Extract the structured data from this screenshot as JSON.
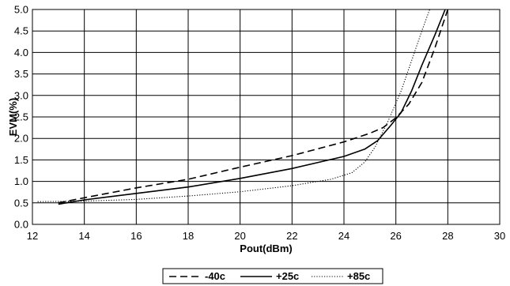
{
  "chart_data": {
    "type": "line",
    "title": "",
    "xlabel": "Pout(dBm)",
    "ylabel": "EVM(%)",
    "xlim": [
      12,
      30
    ],
    "ylim": [
      0,
      5
    ],
    "xticks": [
      "12",
      "14",
      "16",
      "18",
      "20",
      "22",
      "24",
      "26",
      "28",
      "30"
    ],
    "yticks": [
      "0.0",
      "0.5",
      "1.0",
      "1.5",
      "2.0",
      "2.5",
      "3.0",
      "3.5",
      "4.0",
      "4.5",
      "5.0"
    ],
    "grid": true,
    "legend": "bottom",
    "series": [
      {
        "name": "-40c",
        "style": "dashed",
        "points": [
          [
            13,
            0.5
          ],
          [
            14,
            0.62
          ],
          [
            16,
            0.85
          ],
          [
            18,
            1.05
          ],
          [
            20,
            1.33
          ],
          [
            22,
            1.6
          ],
          [
            24,
            1.92
          ],
          [
            25,
            2.12
          ],
          [
            25.5,
            2.25
          ],
          [
            26,
            2.48
          ],
          [
            26.5,
            2.8
          ],
          [
            27,
            3.3
          ],
          [
            27.5,
            4.1
          ],
          [
            28,
            5.0
          ]
        ]
      },
      {
        "name": "+25c",
        "style": "solid",
        "points": [
          [
            13,
            0.47
          ],
          [
            14,
            0.57
          ],
          [
            16,
            0.72
          ],
          [
            18,
            0.87
          ],
          [
            20,
            1.07
          ],
          [
            22,
            1.3
          ],
          [
            24,
            1.58
          ],
          [
            24.8,
            1.75
          ],
          [
            25.3,
            1.95
          ],
          [
            25.8,
            2.3
          ],
          [
            26.2,
            2.6
          ],
          [
            26.6,
            3.1
          ],
          [
            27,
            3.7
          ],
          [
            27.5,
            4.4
          ],
          [
            27.9,
            5.0
          ]
        ]
      },
      {
        "name": "+85c",
        "style": "dotted",
        "points": [
          [
            12.2,
            0.53
          ],
          [
            14,
            0.54
          ],
          [
            16,
            0.58
          ],
          [
            18,
            0.66
          ],
          [
            20,
            0.76
          ],
          [
            22,
            0.9
          ],
          [
            23.5,
            1.05
          ],
          [
            24.3,
            1.2
          ],
          [
            24.8,
            1.45
          ],
          [
            25.2,
            1.8
          ],
          [
            25.7,
            2.4
          ],
          [
            26.2,
            3.1
          ],
          [
            26.6,
            3.8
          ],
          [
            27,
            4.5
          ],
          [
            27.3,
            5.0
          ]
        ]
      }
    ]
  }
}
